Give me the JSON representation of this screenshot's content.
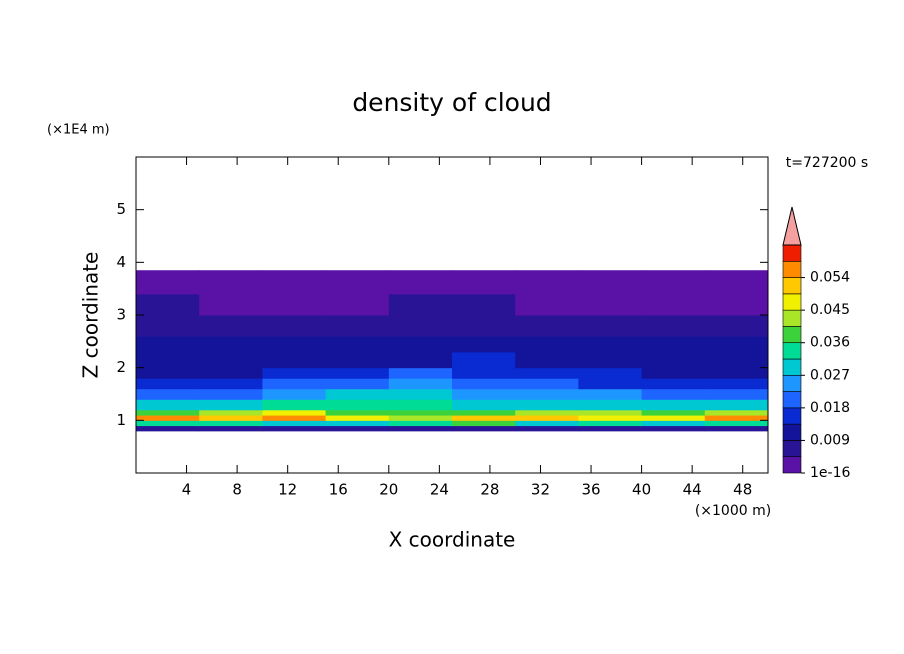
{
  "chart_data": {
    "type": "contour",
    "title": "density of cloud",
    "x_label": "X coordinate",
    "y_label": "Z coordinate",
    "x_unit": "(×1000 m)",
    "y_unit": "(×1E4 m)",
    "time_label": "t=727200 s",
    "xlim": [
      0,
      50
    ],
    "ylim": [
      0,
      6
    ],
    "xticks": [
      4,
      8,
      12,
      16,
      20,
      24,
      28,
      32,
      36,
      40,
      44,
      48
    ],
    "yticks": [
      1,
      2,
      3,
      4,
      5
    ],
    "x_edges": [
      0,
      5,
      10,
      15,
      20,
      25,
      30,
      35,
      40,
      45,
      50
    ],
    "z_edges": [
      0.8,
      0.9,
      1.0,
      1.1,
      1.2,
      1.4,
      1.6,
      1.8,
      2.0,
      2.3,
      2.6,
      3.0,
      3.4,
      3.85
    ],
    "values": [
      [
        0.006,
        0.005,
        0.007,
        0.005,
        0.006,
        0.005,
        0.006,
        0.005,
        0.006,
        0.007
      ],
      [
        0.032,
        0.035,
        0.03,
        0.028,
        0.034,
        0.036,
        0.03,
        0.033,
        0.031,
        0.035
      ],
      [
        0.056,
        0.05,
        0.058,
        0.047,
        0.044,
        0.05,
        0.052,
        0.045,
        0.048,
        0.057
      ],
      [
        0.04,
        0.043,
        0.046,
        0.038,
        0.036,
        0.04,
        0.042,
        0.041,
        0.037,
        0.044
      ],
      [
        0.027,
        0.03,
        0.032,
        0.035,
        0.033,
        0.029,
        0.031,
        0.03,
        0.028,
        0.029
      ],
      [
        0.02,
        0.022,
        0.025,
        0.028,
        0.027,
        0.024,
        0.026,
        0.023,
        0.02,
        0.021
      ],
      [
        0.015,
        0.016,
        0.018,
        0.022,
        0.024,
        0.02,
        0.019,
        0.017,
        0.016,
        0.015
      ],
      [
        0.012,
        0.013,
        0.014,
        0.016,
        0.019,
        0.017,
        0.015,
        0.014,
        0.013,
        0.012
      ],
      [
        0.011,
        0.011,
        0.012,
        0.012,
        0.013,
        0.014,
        0.013,
        0.012,
        0.011,
        0.011
      ],
      [
        0.009,
        0.01,
        0.01,
        0.009,
        0.01,
        0.01,
        0.011,
        0.01,
        0.009,
        0.009
      ],
      [
        0.008,
        0.007,
        0.007,
        0.006,
        0.007,
        0.007,
        0.007,
        0.006,
        0.007,
        0.007
      ],
      [
        0.005,
        0.004,
        0.004,
        0.004,
        0.005,
        0.005,
        0.004,
        0.004,
        0.004,
        0.004
      ],
      [
        0.002,
        0.002,
        0.002,
        0.002,
        0.002,
        0.002,
        0.002,
        0.002,
        0.002,
        0.002
      ]
    ],
    "colorbar": {
      "levels": [
        1e-16,
        0.0045,
        0.009,
        0.0135,
        0.018,
        0.0225,
        0.027,
        0.0315,
        0.036,
        0.0405,
        0.045,
        0.0495,
        0.054,
        0.0585,
        0.063
      ],
      "colors": [
        "#5a12a6",
        "#2a1496",
        "#14149a",
        "#0a2ad2",
        "#1e64ff",
        "#1e96ff",
        "#00c8d2",
        "#00dc96",
        "#3cd23c",
        "#aae628",
        "#f0f000",
        "#ffc800",
        "#ff8c00",
        "#f01e00"
      ],
      "extend_color": "#f4a0a0",
      "ticks": [
        1e-16,
        0.009,
        0.018,
        0.027,
        0.036,
        0.045,
        0.054
      ]
    }
  }
}
